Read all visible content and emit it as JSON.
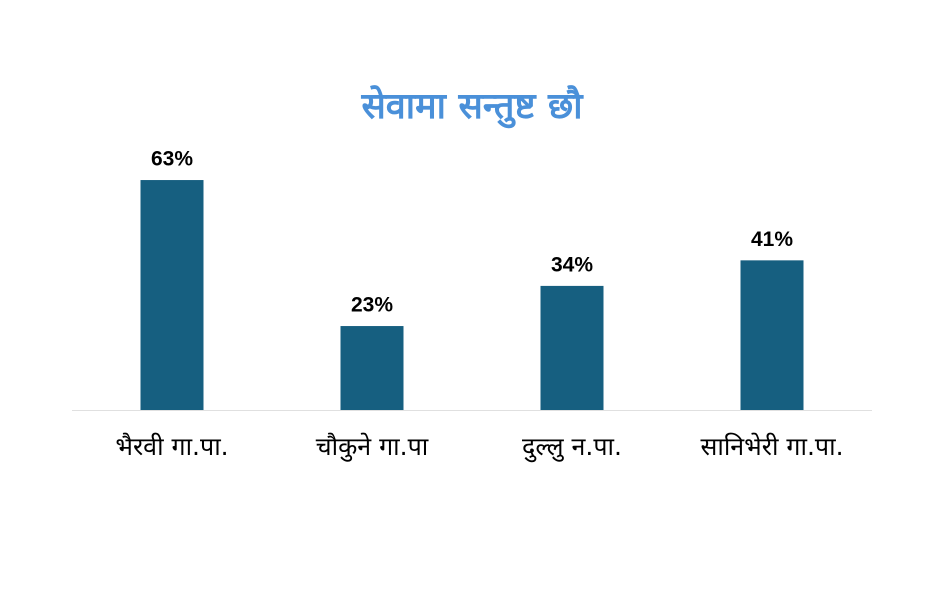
{
  "chart_data": {
    "type": "bar",
    "title": "सेवामा सन्तुष्ट छौ",
    "title_color": "#4a90d9",
    "categories": [
      "भैरवी गा.पा.",
      "चौकुने गा.पा",
      "दुल्लु न.पा.",
      "सानिभेरी गा.पा."
    ],
    "values": [
      63,
      23,
      34,
      41
    ],
    "value_labels": [
      "63%",
      "23%",
      "34%",
      "41%"
    ],
    "color": "#165f80"
  }
}
